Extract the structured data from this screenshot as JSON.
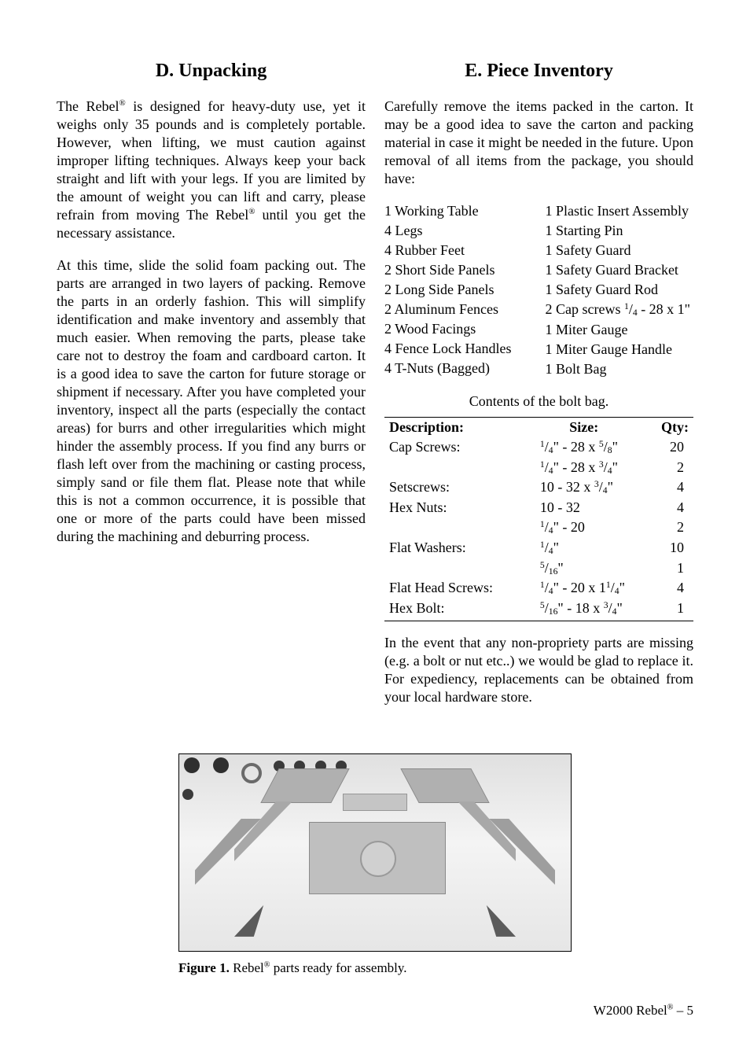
{
  "left": {
    "title": "D. Unpacking",
    "para1_a": "The Rebel",
    "para1_b": " is designed for heavy-duty use, yet it weighs only 35 pounds and is completely portable. However, when lifting, we must caution against improper lifting techniques. Always keep your back straight and lift with your legs. If you are limited by the amount of weight you can lift and carry, please refrain from moving The Rebel",
    "para1_c": " until you get the necessary assistance.",
    "para2": "At this time, slide the solid foam packing out. The parts are arranged in two layers of packing. Remove the parts in an orderly fashion. This will simplify identification and make inventory and assembly that much easier. When removing the parts, please take care not to destroy the foam and cardboard carton. It is a good idea to save the carton for future storage or shipment if necessary. After you have completed your inventory, inspect all the parts (especially the contact areas) for burrs and other irregularities which might hinder the assembly process. If you find any burrs or flash left over from the machining or casting process, simply sand or file them flat. Please note that while this is not a common occurrence, it is possible that one or more of the parts could have been missed during the machining and deburring process."
  },
  "right": {
    "title": "E. Piece Inventory",
    "intro": "Carefully remove the items packed in the carton. It may be a good idea to save the carton and packing material in case it might be needed in the future. Upon removal of all items from the package, you should have:",
    "list_left": [
      "1 Working Table",
      "4 Legs",
      "4 Rubber Feet",
      "2 Short Side Panels",
      "2 Long Side Panels",
      "2 Aluminum Fences",
      "2 Wood Facings",
      "4 Fence Lock Handles",
      "4 T-Nuts (Bagged)"
    ],
    "list_right": [
      "1 Plastic Insert Assembly",
      "1 Starting Pin",
      "1 Safety Guard",
      "1 Safety Guard Bracket",
      "1 Safety Guard Rod",
      {
        "pre": "2 Cap screws ",
        "frac_n": "1",
        "frac_d": "4",
        "post": " - 28 x 1\""
      },
      "1 Miter Gauge",
      "1 Miter Gauge Handle",
      "1 Bolt Bag"
    ],
    "bolt_caption": "Contents of the bolt bag.",
    "table": {
      "headers": {
        "desc": "Description:",
        "size": "Size:",
        "qty": "Qty:"
      },
      "rows": [
        {
          "desc": "Cap Screws:",
          "size_raw": {
            "a": "1",
            "b": "4",
            "mid": "\" - 28 x ",
            "c": "5",
            "d": "8",
            "post": "\""
          },
          "qty": "20"
        },
        {
          "desc": "",
          "size_raw": {
            "a": "1",
            "b": "4",
            "mid": "\" - 28 x ",
            "c": "3",
            "d": "4",
            "post": "\""
          },
          "qty": "2"
        },
        {
          "desc": "Setscrews:",
          "size_raw": {
            "plain_pre": "10 - 32 x ",
            "c": "3",
            "d": "4",
            "post": "\""
          },
          "qty": "4"
        },
        {
          "desc": "Hex Nuts:",
          "size_raw": {
            "plain": "10 - 32"
          },
          "qty": "4"
        },
        {
          "desc": "",
          "size_raw": {
            "a": "1",
            "b": "4",
            "post": "\" - 20"
          },
          "qty": "2"
        },
        {
          "desc": "Flat Washers:",
          "size_raw": {
            "a": "1",
            "b": "4",
            "post": "\""
          },
          "qty": "10"
        },
        {
          "desc": "",
          "size_raw": {
            "a": "5",
            "b": "16",
            "post": "\""
          },
          "qty": "1"
        },
        {
          "desc": "Flat Head Screws:",
          "size_raw": {
            "a": "1",
            "b": "4",
            "mid": "\" - 20 x 1",
            "c": "1",
            "d": "4",
            "post": "\""
          },
          "qty": "4"
        },
        {
          "desc": "Hex Bolt:",
          "size_raw": {
            "a": "5",
            "b": "16",
            "mid": "\" - 18 x ",
            "c": "3",
            "d": "4",
            "post": "\""
          },
          "qty": "1"
        }
      ]
    },
    "outro": "In the event that any non-propriety parts are missing (e.g. a bolt or nut etc..) we would be glad to replace it. For expediency, replacements can be obtained from your local hardware store."
  },
  "figure": {
    "label": "Figure 1.",
    "caption_a": " Rebel",
    "caption_b": " parts ready for assembly."
  },
  "footer": {
    "a": "W2000 Rebel",
    "b": " – 5"
  },
  "reg": "®"
}
